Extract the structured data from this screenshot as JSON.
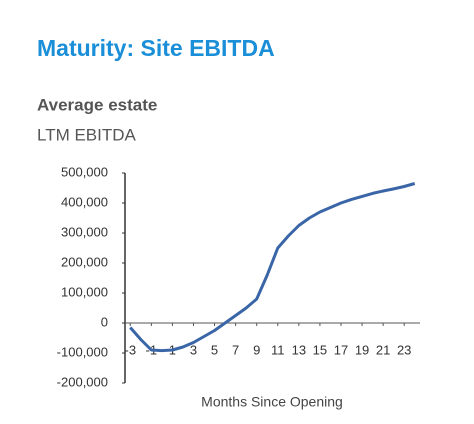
{
  "chart_data": {
    "type": "line",
    "title": "Maturity: Site EBITDA",
    "subtitle": "Average estate",
    "y_label": "LTM EBITDA",
    "x_label": "Months Since Opening",
    "x": [
      -3,
      -2,
      -1,
      0,
      1,
      2,
      3,
      4,
      5,
      6,
      7,
      8,
      9,
      10,
      11,
      12,
      13,
      14,
      15,
      16,
      17,
      18,
      19,
      20,
      21,
      22,
      23,
      24
    ],
    "series": [
      {
        "name": "LTM EBITDA",
        "color": "#3a66a8",
        "values": [
          -15000,
          -55000,
          -90000,
          -92000,
          -90000,
          -80000,
          -65000,
          -45000,
          -25000,
          0,
          25000,
          50000,
          80000,
          160000,
          250000,
          290000,
          325000,
          350000,
          370000,
          385000,
          400000,
          412000,
          422000,
          432000,
          440000,
          447000,
          455000,
          465000
        ]
      }
    ],
    "xlim": [
      -3.5,
      24.5
    ],
    "xticks": [
      -3,
      -1,
      1,
      3,
      5,
      7,
      9,
      11,
      13,
      15,
      17,
      19,
      21,
      23
    ],
    "ylim": [
      -200000,
      500000
    ],
    "yticks": [
      {
        "value": -200000,
        "label": "-200,000"
      },
      {
        "value": -100000,
        "label": "-100,000"
      },
      0,
      {
        "value": 100000,
        "label": "100,000"
      },
      {
        "value": 200000,
        "label": "200,000"
      },
      {
        "value": 300000,
        "label": "300,000"
      },
      {
        "value": 400000,
        "label": "400,000"
      },
      {
        "value": 500000,
        "label": "500,000"
      }
    ]
  }
}
